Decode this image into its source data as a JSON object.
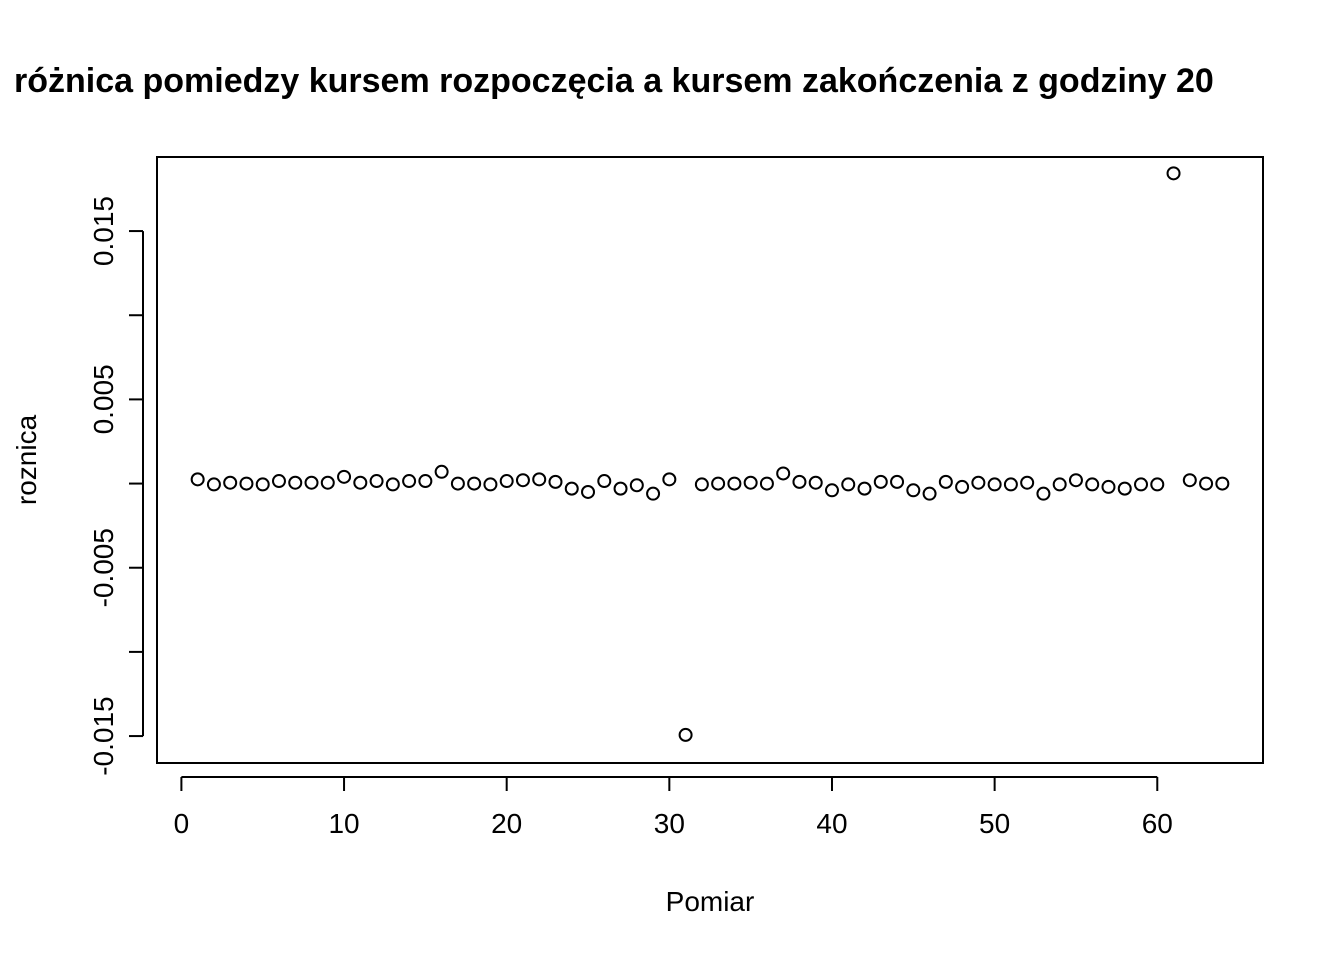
{
  "chart_data": {
    "type": "scatter",
    "title": "różnica pomiedzy kursem rozpoczęcia a kursem zakończenia z godziny 20",
    "xlabel": "Pomiar",
    "ylabel": "roznica",
    "xlim": [
      -1.5,
      66.5
    ],
    "ylim": [
      -0.0166,
      0.0194
    ],
    "x_ticks": [
      0,
      10,
      20,
      30,
      40,
      50,
      60
    ],
    "x_tick_labels": [
      "0",
      "10",
      "20",
      "30",
      "40",
      "50",
      "60"
    ],
    "y_ticks": [
      -0.015,
      -0.01,
      -0.005,
      0.0,
      0.005,
      0.01,
      0.015
    ],
    "y_tick_labels": [
      "-0.015",
      "",
      "-0.005",
      "",
      "0.005",
      "",
      "0.015"
    ],
    "grid": false,
    "series": [
      {
        "x": [
          1,
          2,
          3,
          4,
          5,
          6,
          7,
          8,
          9,
          10,
          11,
          12,
          13,
          14,
          15,
          16,
          17,
          18,
          19,
          20,
          21,
          22,
          23,
          24,
          25,
          26,
          27,
          28,
          29,
          30,
          31,
          32,
          33,
          34,
          35,
          36,
          37,
          38,
          39,
          40,
          41,
          42,
          43,
          44,
          45,
          46,
          47,
          48,
          49,
          50,
          51,
          52,
          53,
          54,
          55,
          56,
          57,
          58,
          59,
          60,
          61,
          62,
          63,
          64
        ],
        "y": [
          0.00025,
          -5e-05,
          5e-05,
          0.0,
          -5e-05,
          0.00015,
          5e-05,
          5e-05,
          5e-05,
          0.0004,
          5e-05,
          0.00015,
          -5e-05,
          0.00015,
          0.00015,
          0.0007,
          0.0,
          0.0,
          -5e-05,
          0.00015,
          0.0002,
          0.00025,
          0.0001,
          -0.0003,
          -0.0005,
          0.00015,
          -0.0003,
          -0.0001,
          -0.0006,
          0.00025,
          -0.01493,
          -5e-05,
          0.0,
          0.0,
          5e-05,
          0.0,
          0.0006,
          0.0001,
          5e-05,
          -0.0004,
          -5e-05,
          -0.0003,
          0.0001,
          0.0001,
          -0.0004,
          -0.0006,
          0.0001,
          -0.0002,
          5e-05,
          -5e-05,
          -5e-05,
          5e-05,
          -0.0006,
          -5e-05,
          0.0002,
          -5e-05,
          -0.0002,
          -0.0003,
          -5e-05,
          -5e-05,
          0.01843,
          0.0002,
          0.0,
          0.0
        ]
      }
    ]
  }
}
